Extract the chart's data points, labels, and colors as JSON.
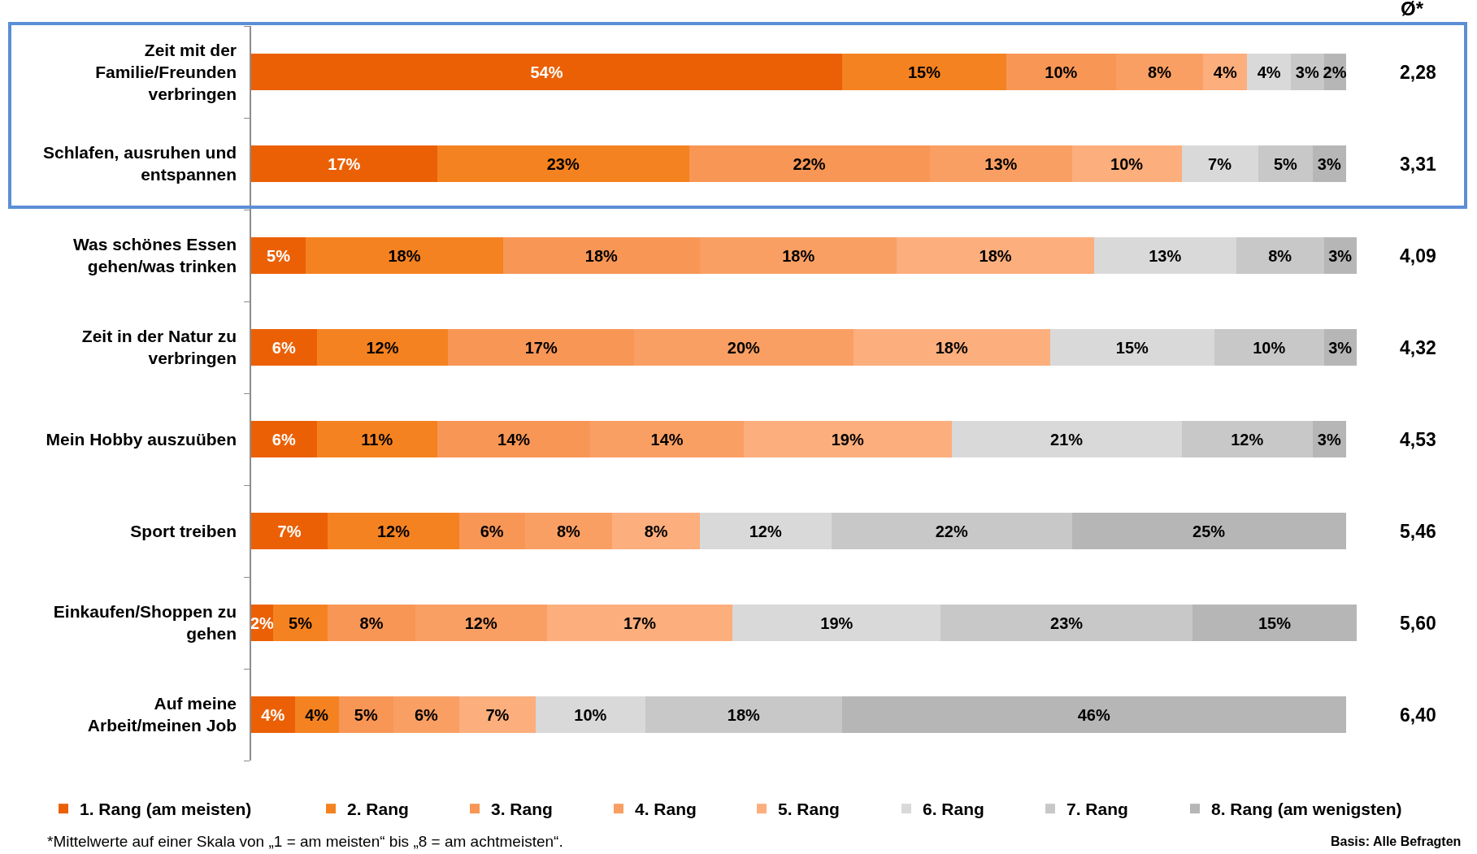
{
  "chart_data": {
    "type": "bar",
    "orientation": "horizontal",
    "stacked": true,
    "legend": "bottom",
    "tick_labels": "y",
    "categories": [
      "Zeit mit der Familie/Freunden verbringen",
      "Schlafen, ausruhen und entspannen",
      "Was schönes Essen gehen/was trinken",
      "Zeit in der Natur zu verbringen",
      "Mein Hobby auszuüben",
      "Sport treiben",
      "Einkaufen/Shoppen zu gehen",
      "Auf meine Arbeit/meinen Job"
    ],
    "series": [
      {
        "name": "1. Rang (am meisten)",
        "color": "#eb6005",
        "values": [
          54,
          17,
          5,
          6,
          6,
          7,
          2,
          4
        ],
        "value_labels": [
          "54%",
          "17%",
          "5%",
          "6%",
          "6%",
          "7%",
          "2%",
          "4%"
        ]
      },
      {
        "name": "2. Rang",
        "color": "#f58220",
        "values": [
          15,
          23,
          18,
          12,
          11,
          12,
          5,
          4
        ],
        "value_labels": [
          "15%",
          "23%",
          "18%",
          "12%",
          "11%",
          "12%",
          "5%",
          "4%"
        ]
      },
      {
        "name": "3. Rang",
        "color": "#f89655",
        "values": [
          10,
          22,
          18,
          17,
          14,
          6,
          8,
          5
        ],
        "value_labels": [
          "10%",
          "22%",
          "18%",
          "17%",
          "14%",
          "6%",
          "8%",
          "5%"
        ]
      },
      {
        "name": "4. Rang",
        "color": "#fa9f63",
        "values": [
          8,
          13,
          18,
          20,
          14,
          8,
          12,
          6
        ],
        "value_labels": [
          "8%",
          "13%",
          "18%",
          "20%",
          "14%",
          "8%",
          "12%",
          "6%"
        ]
      },
      {
        "name": "5. Rang",
        "color": "#fcae7d",
        "values": [
          4,
          10,
          18,
          18,
          19,
          8,
          17,
          7
        ],
        "value_labels": [
          "4%",
          "10%",
          "18%",
          "18%",
          "19%",
          "8%",
          "17%",
          "7%"
        ]
      },
      {
        "name": "6. Rang",
        "color": "#d9d9d9",
        "values": [
          4,
          7,
          13,
          15,
          21,
          12,
          19,
          10
        ],
        "value_labels": [
          "4%",
          "7%",
          "13%",
          "15%",
          "21%",
          "12%",
          "19%",
          "10%"
        ]
      },
      {
        "name": "7. Rang",
        "color": "#c8c8c8",
        "values": [
          3,
          5,
          8,
          10,
          12,
          22,
          23,
          18
        ],
        "value_labels": [
          "3%",
          "5%",
          "8%",
          "10%",
          "12%",
          "22%",
          "23%",
          "18%"
        ]
      },
      {
        "name": "8. Rang (am wenigsten)",
        "color": "#b6b6b6",
        "values": [
          2,
          3,
          3,
          3,
          3,
          25,
          15,
          46
        ],
        "value_labels": [
          "2%",
          "3%",
          "3%",
          "3%",
          "3%",
          "25%",
          "15%",
          "46%"
        ]
      }
    ],
    "annotations": [
      "Ø*",
      "2,28",
      "3,31",
      "4,09",
      "4,32",
      "4,53",
      "5,46",
      "5,60",
      "6,40",
      "*Mittelwerte auf einer Skala von „1 = am meisten“ bis „8 = am achtmeisten“.",
      "Basis: Alle Befragten"
    ]
  }
}
